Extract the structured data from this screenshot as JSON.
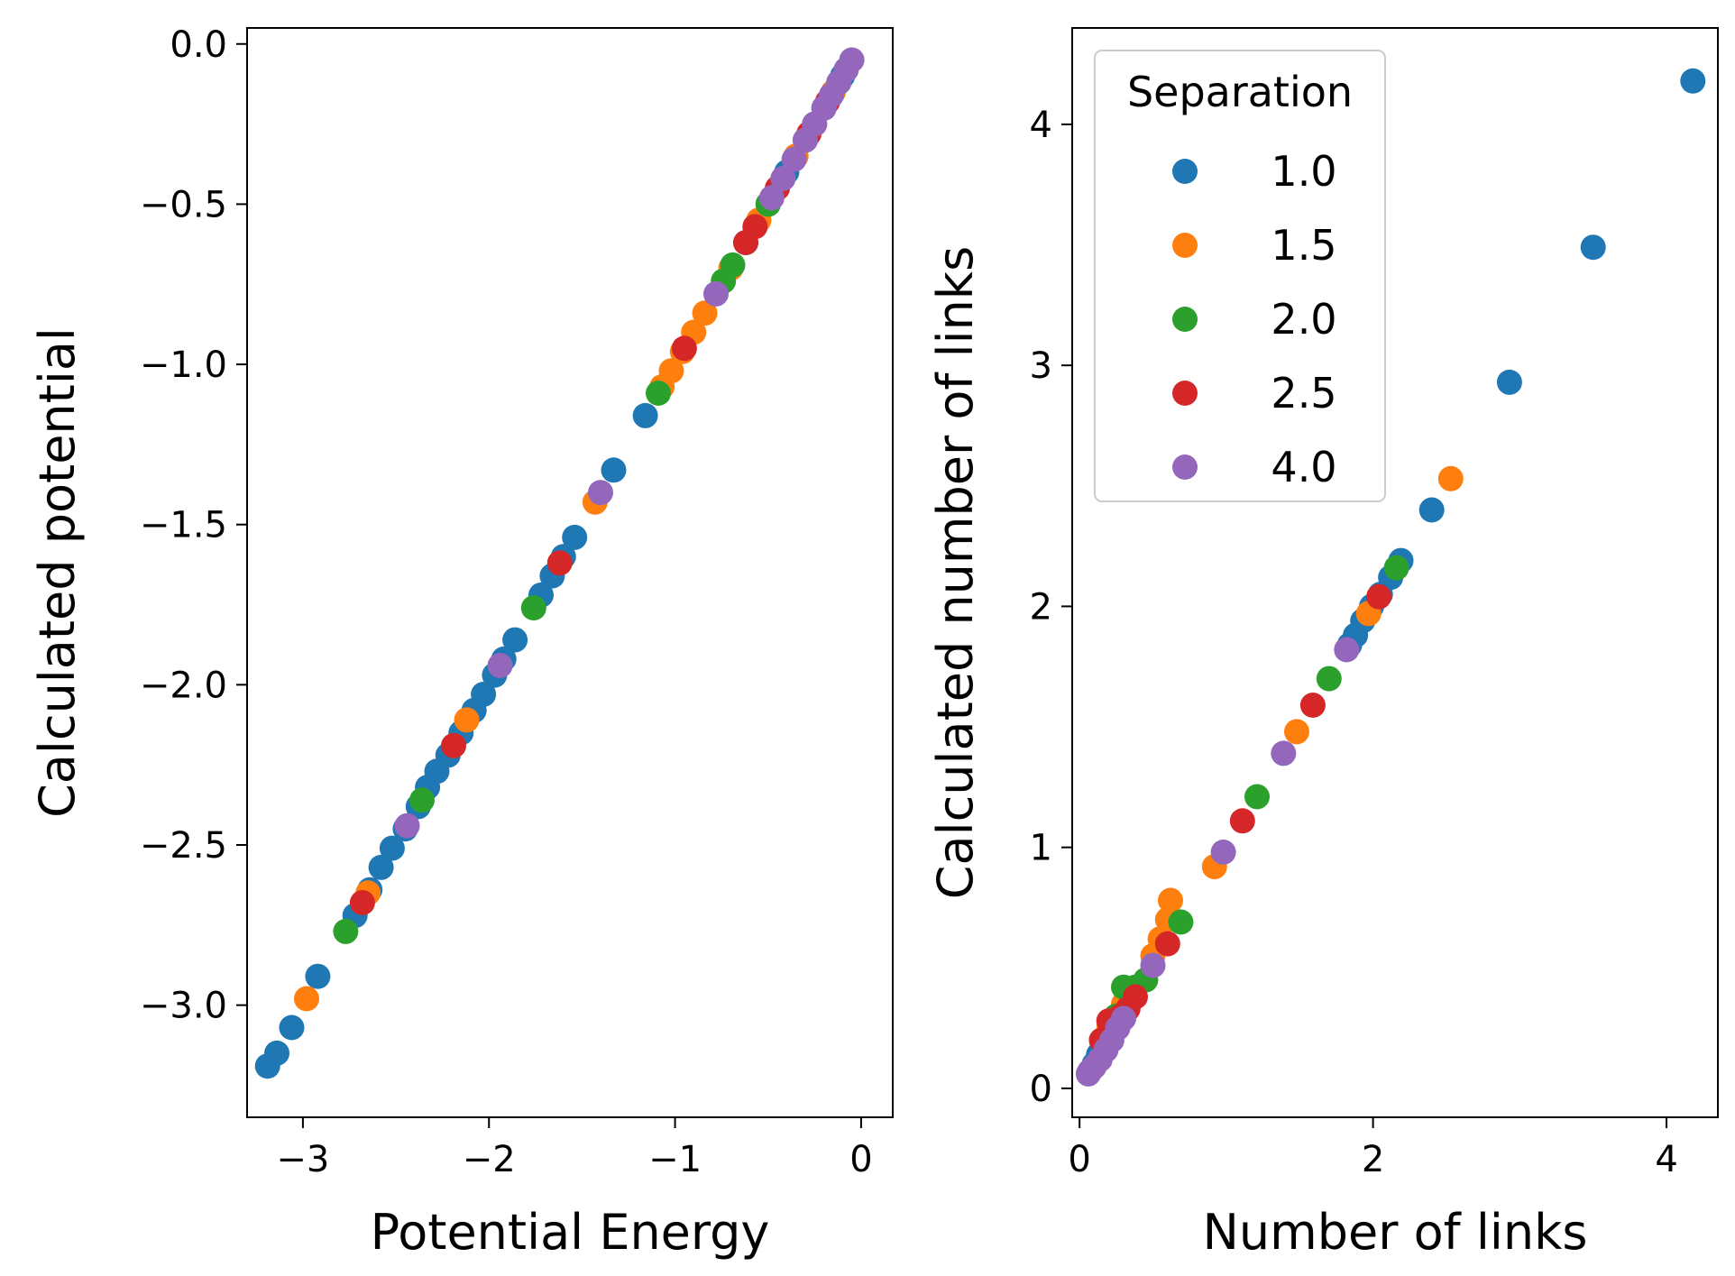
{
  "figure": {
    "legend": {
      "title": "Separation",
      "placement": "upper-left of right panel",
      "entries": [
        {
          "label": "1.0",
          "color": "#1f77b4"
        },
        {
          "label": "1.5",
          "color": "#ff7f0e"
        },
        {
          "label": "2.0",
          "color": "#2ca02c"
        },
        {
          "label": "2.5",
          "color": "#d62728"
        },
        {
          "label": "4.0",
          "color": "#9467bd"
        }
      ]
    }
  },
  "chart_data": [
    {
      "type": "scatter",
      "title": "",
      "xlabel": "Potential Energy",
      "ylabel": "Calculated potential",
      "xlim": [
        -3.3,
        0.17
      ],
      "ylim": [
        -3.35,
        0.05
      ],
      "xticks": [
        -3,
        -2,
        -1,
        0
      ],
      "xtick_labels": [
        "−3",
        "−2",
        "−1",
        "0"
      ],
      "yticks": [
        0.0,
        -0.5,
        -1.0,
        -1.5,
        -2.0,
        -2.5,
        -3.0
      ],
      "ytick_labels": [
        "0.0",
        "−0.5",
        "−1.0",
        "−1.5",
        "−2.0",
        "−2.5",
        "−3.0"
      ],
      "grid": false,
      "series": [
        {
          "name": "1.0",
          "color": "#1f77b4",
          "points": [
            [
              -3.19,
              -3.19
            ],
            [
              -3.14,
              -3.15
            ],
            [
              -3.06,
              -3.07
            ],
            [
              -2.92,
              -2.91
            ],
            [
              -2.72,
              -2.72
            ],
            [
              -2.64,
              -2.64
            ],
            [
              -2.58,
              -2.57
            ],
            [
              -2.52,
              -2.51
            ],
            [
              -2.45,
              -2.45
            ],
            [
              -2.38,
              -2.38
            ],
            [
              -2.33,
              -2.32
            ],
            [
              -2.28,
              -2.27
            ],
            [
              -2.22,
              -2.22
            ],
            [
              -2.15,
              -2.15
            ],
            [
              -2.08,
              -2.08
            ],
            [
              -2.03,
              -2.03
            ],
            [
              -1.97,
              -1.97
            ],
            [
              -1.92,
              -1.92
            ],
            [
              -1.86,
              -1.86
            ],
            [
              -1.72,
              -1.72
            ],
            [
              -1.66,
              -1.66
            ],
            [
              -1.6,
              -1.6
            ],
            [
              -1.54,
              -1.54
            ],
            [
              -1.33,
              -1.33
            ],
            [
              -1.16,
              -1.16
            ],
            [
              -0.62,
              -0.62
            ],
            [
              -0.5,
              -0.5
            ],
            [
              -0.4,
              -0.4
            ],
            [
              -0.3,
              -0.3
            ],
            [
              -0.2,
              -0.2
            ],
            [
              -0.1,
              -0.1
            ]
          ]
        },
        {
          "name": "1.5",
          "color": "#ff7f0e",
          "points": [
            [
              -2.98,
              -2.98
            ],
            [
              -2.65,
              -2.65
            ],
            [
              -2.12,
              -2.11
            ],
            [
              -1.43,
              -1.43
            ],
            [
              -1.07,
              -1.07
            ],
            [
              -1.02,
              -1.02
            ],
            [
              -0.96,
              -0.96
            ],
            [
              -0.9,
              -0.9
            ],
            [
              -0.84,
              -0.84
            ],
            [
              -0.7,
              -0.7
            ],
            [
              -0.55,
              -0.55
            ],
            [
              -0.35,
              -0.35
            ],
            [
              -0.15,
              -0.15
            ]
          ]
        },
        {
          "name": "2.0",
          "color": "#2ca02c",
          "points": [
            [
              -2.77,
              -2.77
            ],
            [
              -2.36,
              -2.36
            ],
            [
              -1.76,
              -1.76
            ],
            [
              -1.09,
              -1.09
            ],
            [
              -0.74,
              -0.74
            ],
            [
              -0.69,
              -0.69
            ],
            [
              -0.5,
              -0.5
            ],
            [
              -0.25,
              -0.25
            ],
            [
              -0.12,
              -0.12
            ]
          ]
        },
        {
          "name": "2.5",
          "color": "#d62728",
          "points": [
            [
              -2.68,
              -2.68
            ],
            [
              -2.19,
              -2.19
            ],
            [
              -1.62,
              -1.62
            ],
            [
              -0.95,
              -0.95
            ],
            [
              -0.62,
              -0.62
            ],
            [
              -0.57,
              -0.57
            ],
            [
              -0.45,
              -0.45
            ],
            [
              -0.28,
              -0.28
            ],
            [
              -0.18,
              -0.18
            ]
          ]
        },
        {
          "name": "4.0",
          "color": "#9467bd",
          "points": [
            [
              -2.44,
              -2.44
            ],
            [
              -1.94,
              -1.94
            ],
            [
              -1.4,
              -1.4
            ],
            [
              -0.78,
              -0.78
            ],
            [
              -0.48,
              -0.48
            ],
            [
              -0.42,
              -0.42
            ],
            [
              -0.36,
              -0.36
            ],
            [
              -0.3,
              -0.3
            ],
            [
              -0.25,
              -0.25
            ],
            [
              -0.2,
              -0.2
            ],
            [
              -0.16,
              -0.16
            ],
            [
              -0.12,
              -0.12
            ],
            [
              -0.08,
              -0.08
            ],
            [
              -0.05,
              -0.05
            ]
          ]
        }
      ]
    },
    {
      "type": "scatter",
      "title": "",
      "xlabel": "Number of links",
      "ylabel": "Calculated number of links",
      "xlim": [
        -0.05,
        4.35
      ],
      "ylim": [
        -0.12,
        4.4
      ],
      "xticks": [
        0,
        2,
        4
      ],
      "xtick_labels": [
        "0",
        "2",
        "4"
      ],
      "yticks": [
        0,
        1,
        2,
        3,
        4
      ],
      "ytick_labels": [
        "0",
        "1",
        "2",
        "3",
        "4"
      ],
      "grid": false,
      "series": [
        {
          "name": "1.0",
          "color": "#1f77b4",
          "points": [
            [
              4.18,
              4.18
            ],
            [
              3.5,
              3.49
            ],
            [
              2.93,
              2.93
            ],
            [
              2.4,
              2.4
            ],
            [
              2.19,
              2.19
            ],
            [
              2.12,
              2.12
            ],
            [
              2.05,
              2.05
            ],
            [
              1.99,
              2.0
            ],
            [
              1.93,
              1.94
            ],
            [
              1.88,
              1.88
            ],
            [
              1.84,
              1.84
            ],
            [
              0.07,
              0.07
            ],
            [
              0.1,
              0.1
            ],
            [
              0.13,
              0.14
            ],
            [
              0.2,
              0.2
            ]
          ]
        },
        {
          "name": "1.5",
          "color": "#ff7f0e",
          "points": [
            [
              2.53,
              2.53
            ],
            [
              1.97,
              1.97
            ],
            [
              1.48,
              1.48
            ],
            [
              0.92,
              0.92
            ],
            [
              0.62,
              0.78
            ],
            [
              0.6,
              0.7
            ],
            [
              0.55,
              0.62
            ],
            [
              0.5,
              0.55
            ],
            [
              0.3,
              0.35
            ],
            [
              0.2,
              0.25
            ]
          ]
        },
        {
          "name": "2.0",
          "color": "#2ca02c",
          "points": [
            [
              2.16,
              2.16
            ],
            [
              1.7,
              1.7
            ],
            [
              1.21,
              1.21
            ],
            [
              0.69,
              0.69
            ],
            [
              0.45,
              0.45
            ],
            [
              0.38,
              0.42
            ],
            [
              0.3,
              0.42
            ],
            [
              0.25,
              0.3
            ],
            [
              0.15,
              0.2
            ]
          ]
        },
        {
          "name": "2.5",
          "color": "#d62728",
          "points": [
            [
              2.04,
              2.04
            ],
            [
              1.59,
              1.59
            ],
            [
              1.11,
              1.11
            ],
            [
              0.6,
              0.6
            ],
            [
              0.38,
              0.38
            ],
            [
              0.33,
              0.33
            ],
            [
              0.28,
              0.3
            ],
            [
              0.2,
              0.28
            ],
            [
              0.15,
              0.2
            ]
          ]
        },
        {
          "name": "4.0",
          "color": "#9467bd",
          "points": [
            [
              1.82,
              1.82
            ],
            [
              1.39,
              1.39
            ],
            [
              0.98,
              0.98
            ],
            [
              0.5,
              0.51
            ],
            [
              0.3,
              0.29
            ],
            [
              0.26,
              0.25
            ],
            [
              0.22,
              0.2
            ],
            [
              0.18,
              0.16
            ],
            [
              0.14,
              0.12
            ],
            [
              0.1,
              0.09
            ],
            [
              0.07,
              0.07
            ],
            [
              0.06,
              0.06
            ]
          ]
        }
      ]
    }
  ]
}
